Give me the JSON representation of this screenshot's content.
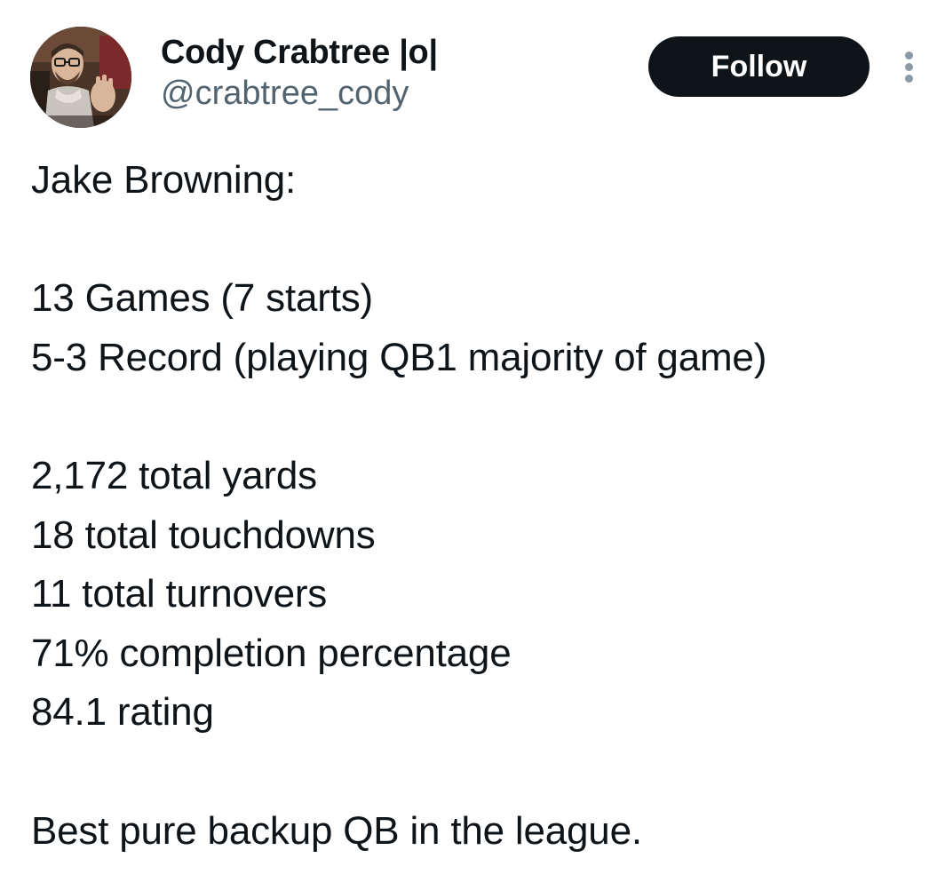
{
  "author": {
    "display_name": "Cody Crabtree |o|",
    "handle": "@crabtree_cody",
    "avatar_icon": "user-avatar"
  },
  "actions": {
    "follow_label": "Follow",
    "more_icon": "more-vertical-icon"
  },
  "tweet": {
    "heading": "Jake Browning:",
    "record_lines": [
      "13 Games (7 starts)",
      "5-3 Record (playing QB1 majority of game)"
    ],
    "stat_lines": [
      "2,172 total yards",
      "18 total touchdowns",
      "11 total turnovers",
      "71% completion percentage",
      "84.1 rating"
    ],
    "closing": "Best pure backup QB in the league."
  },
  "colors": {
    "text_primary": "#0f1419",
    "text_secondary": "#536471",
    "follow_bg": "#0f1419",
    "follow_text": "#ffffff",
    "more_dots": "#8b98a5"
  }
}
